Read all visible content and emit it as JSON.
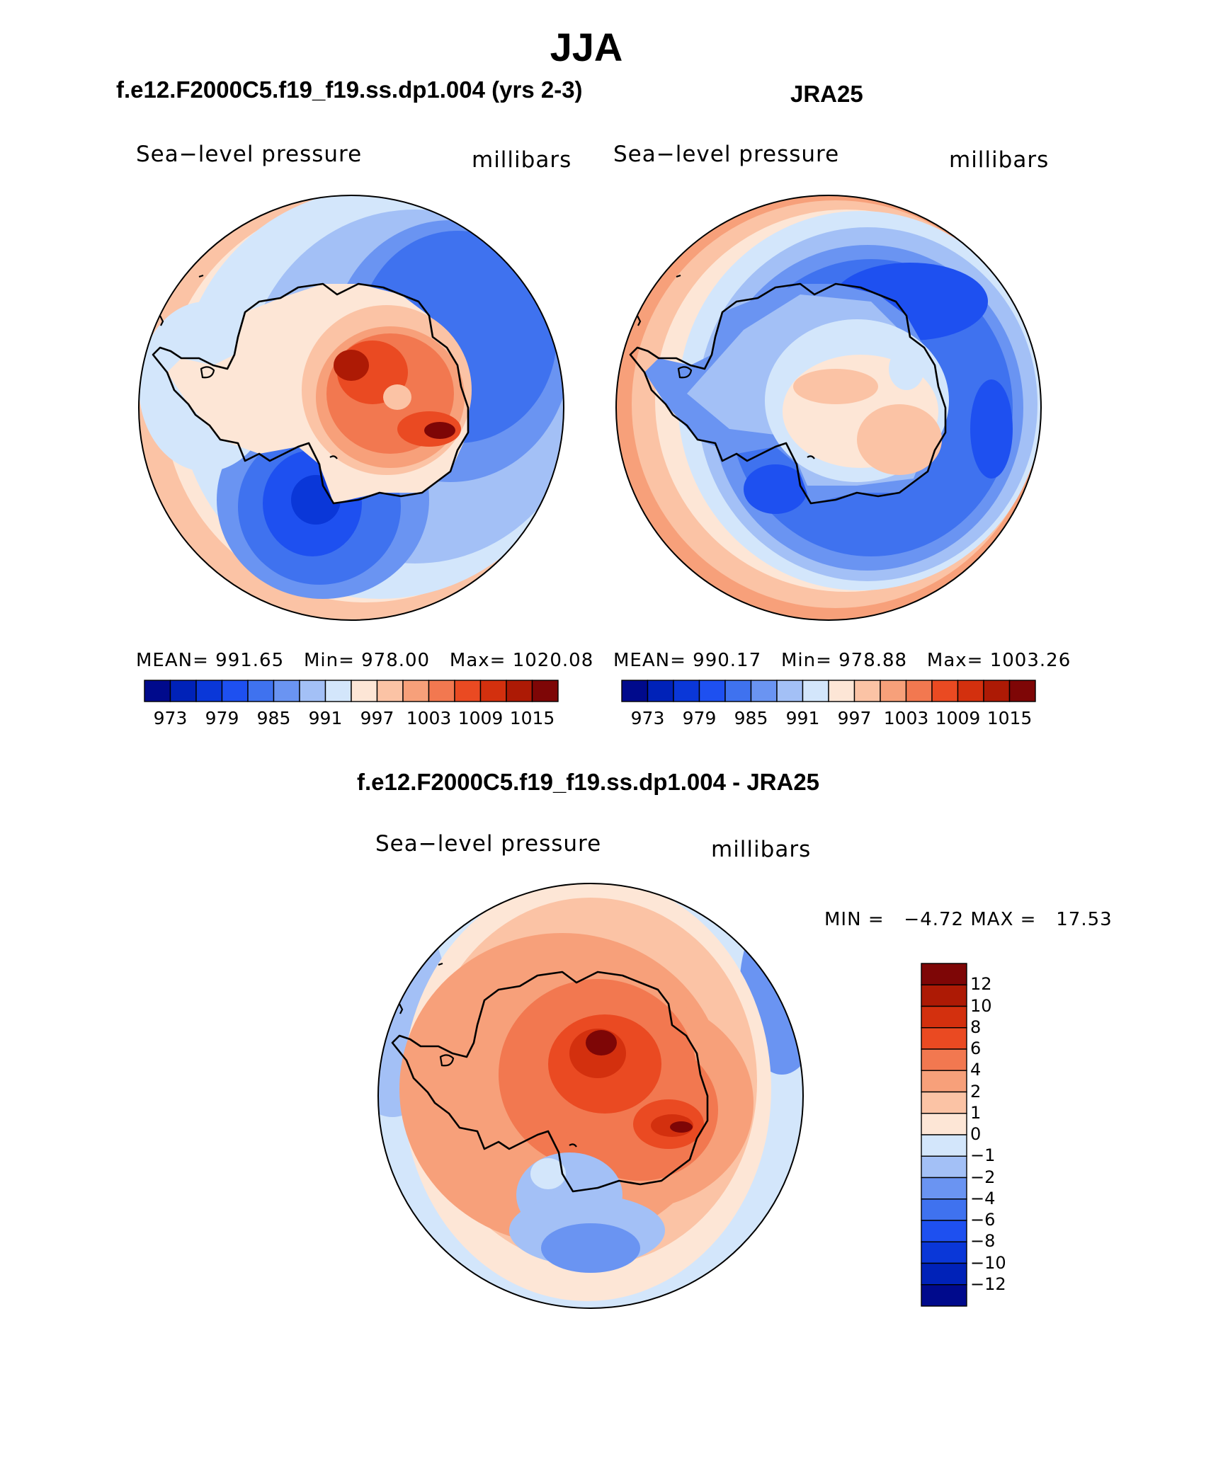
{
  "page": {
    "title": "JJA"
  },
  "panels": {
    "model": {
      "title": "f.e12.F2000C5.f19_f19.ss.dp1.004 (yrs 2-3)",
      "field_label": "Sea−level pressure",
      "units": "millibars",
      "stats": {
        "mean_label": "MEAN=",
        "mean": "991.65",
        "min_label": "Min=",
        "min": "978.00",
        "max_label": "Max=",
        "max": "1020.08"
      }
    },
    "obs": {
      "title": "JRA25",
      "field_label": "Sea−level pressure",
      "units": "millibars",
      "stats": {
        "mean_label": "MEAN=",
        "mean": "990.17",
        "min_label": "Min=",
        "min": "978.88",
        "max_label": "Max=",
        "max": "1003.26"
      }
    },
    "diff": {
      "title": "f.e12.F2000C5.f19_f19.ss.dp1.004 - JRA25",
      "field_label": "Sea−level pressure",
      "units": "millibars",
      "stats": {
        "min_label": "MIN =",
        "min": "−4.72",
        "max_label": "MAX =",
        "max": "17.53"
      }
    }
  },
  "colorbars": {
    "abs": {
      "ticks": [
        "973",
        "979",
        "985",
        "991",
        "997",
        "1003",
        "1009",
        "1015"
      ],
      "colors": [
        "#000a8c",
        "#0022b8",
        "#0a37d8",
        "#1e50f0",
        "#3f72ef",
        "#6a94f2",
        "#a3c0f6",
        "#d3e6fb",
        "#fde6d6",
        "#fbc3a5",
        "#f7a07a",
        "#f27850",
        "#ea4a22",
        "#d3300e",
        "#ad1a05",
        "#7e0606"
      ]
    },
    "diff": {
      "ticks": [
        "12",
        "10",
        "8",
        "6",
        "4",
        "2",
        "1",
        "0",
        "−1",
        "−2",
        "−4",
        "−6",
        "−8",
        "−10",
        "−12"
      ],
      "colors": [
        "#7e0606",
        "#ad1a05",
        "#d3300e",
        "#ea4a22",
        "#f27850",
        "#f7a07a",
        "#fbc3a5",
        "#fde6d6",
        "#d3e6fb",
        "#a3c0f6",
        "#6a94f2",
        "#3f72ef",
        "#1e50f0",
        "#0a37d8",
        "#0022b8",
        "#000a8c"
      ]
    }
  },
  "map_data": {
    "projection": "south polar stereographic",
    "region": "Antarctica / Southern Ocean",
    "levels_abs": [
      973,
      976,
      979,
      982,
      985,
      988,
      991,
      994,
      997,
      1000,
      1003,
      1006,
      1009,
      1012,
      1015
    ],
    "levels_diff": [
      -12,
      -10,
      -8,
      -6,
      -4,
      -2,
      -1,
      0,
      1,
      2,
      4,
      6,
      8,
      10,
      12
    ]
  }
}
